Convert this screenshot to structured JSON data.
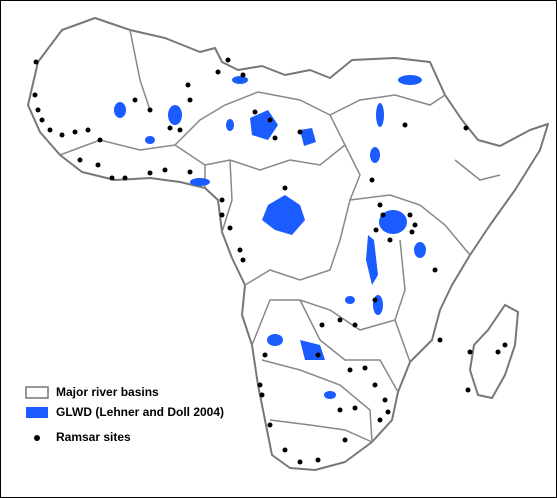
{
  "legend": {
    "items": [
      {
        "label": "Major river basins"
      },
      {
        "label": "GLWD (Lehner and Doll 2004)"
      },
      {
        "label": "Ramsar sites"
      }
    ]
  }
}
